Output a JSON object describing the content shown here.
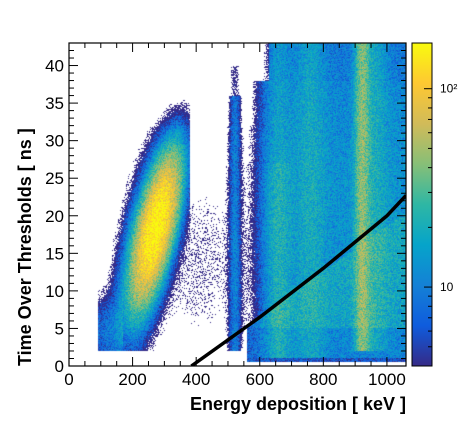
{
  "chart_data": {
    "type": "heatmap",
    "title": "",
    "xlabel": "Energy deposition [ keV ]",
    "ylabel": "Time Over Thresholds [ ns ]",
    "xlim": [
      0,
      1060
    ],
    "ylim": [
      0,
      43
    ],
    "x_ticks": [
      0,
      200,
      400,
      600,
      800,
      1000
    ],
    "y_ticks": [
      0,
      5,
      10,
      15,
      20,
      25,
      30,
      35,
      40
    ],
    "colorbar": {
      "scale": "log",
      "range": [
        4,
        170
      ],
      "tick_labels": [
        {
          "value": 10,
          "label": "10"
        },
        {
          "value": 100,
          "label": "10²"
        }
      ],
      "colors": [
        "#352a87",
        "#0f5cdd",
        "#1481d6",
        "#06a4ca",
        "#2eb7a4",
        "#87bf77",
        "#d1bb59",
        "#fec832",
        "#f9fb0e"
      ]
    },
    "regions": [
      {
        "name": "photopeak-511",
        "x_range": [
          90,
          380
        ],
        "y_range": [
          2,
          36
        ],
        "peak": [
          275,
          18.5
        ],
        "max_count": 170
      },
      {
        "name": "vertical-band-511",
        "x_range": [
          500,
          545
        ],
        "y_range": [
          2,
          40
        ],
        "max_count": 30
      },
      {
        "name": "compton-continuum",
        "x_range": [
          540,
          1060
        ],
        "y_range": [
          1,
          43
        ],
        "max_count": 25
      },
      {
        "name": "vertical-band-1274",
        "x_range": [
          900,
          945
        ],
        "y_range": [
          2,
          43
        ],
        "max_count": 45
      }
    ],
    "cut_line": {
      "points": [
        [
          385,
          0
        ],
        [
          600,
          6.5
        ],
        [
          800,
          13
        ],
        [
          1000,
          20
        ],
        [
          1060,
          22.7
        ]
      ],
      "color": "#000000"
    }
  }
}
